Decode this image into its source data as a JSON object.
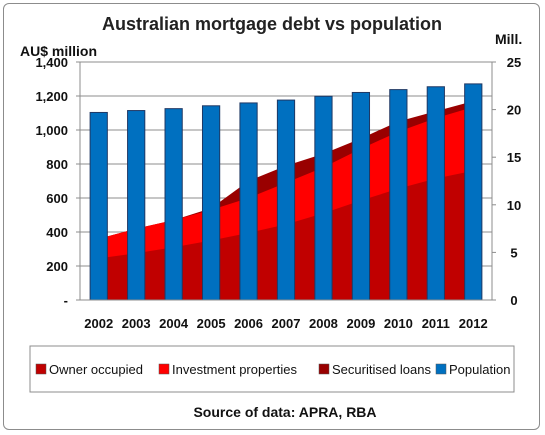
{
  "chart_data": {
    "type": "area",
    "title": "Australian mortgage debt vs population",
    "ylabel_left": "AU$ million",
    "ylabel_right": "Mill.",
    "source": "Source of data: APRA, RBA",
    "x": [
      "2002",
      "2003",
      "2004",
      "2005",
      "2006",
      "2007",
      "2008",
      "2009",
      "2010",
      "2011",
      "2012"
    ],
    "y_left": {
      "ylim": [
        0,
        1400
      ],
      "ticks": [
        "-",
        "200",
        "400",
        "600",
        "800",
        "1,000",
        "1,200",
        "1,400"
      ]
    },
    "y_right": {
      "ylim": [
        0,
        25
      ],
      "ticks": [
        "0",
        "5",
        "10",
        "15",
        "20",
        "25"
      ]
    },
    "series": [
      {
        "name": "Owner occupied",
        "type": "area",
        "axis": "left",
        "color": "#c00000",
        "values": [
          245,
          275,
          310,
          350,
          395,
          445,
          510,
          585,
          655,
          715,
          760
        ]
      },
      {
        "name": "Investment properties",
        "type": "area",
        "axis": "left",
        "color": "#ff0000",
        "values": [
          360,
          420,
          470,
          530,
          600,
          690,
          780,
          890,
          990,
          1070,
          1135
        ]
      },
      {
        "name": "Securitised loans",
        "type": "area",
        "axis": "left",
        "color": "#990000",
        "values": [
          360,
          420,
          470,
          540,
          700,
          790,
          860,
          950,
          1050,
          1110,
          1170
        ]
      },
      {
        "name": "Population",
        "type": "bar",
        "axis": "right",
        "color": "#0070c0",
        "values": [
          19.7,
          19.9,
          20.1,
          20.4,
          20.7,
          21.0,
          21.4,
          21.8,
          22.1,
          22.4,
          22.7
        ]
      }
    ],
    "legend": {
      "placement": "bottom",
      "entries": [
        "Owner occupied",
        "Investment properties",
        "Securitised loans",
        "Population"
      ]
    },
    "grid": true
  }
}
